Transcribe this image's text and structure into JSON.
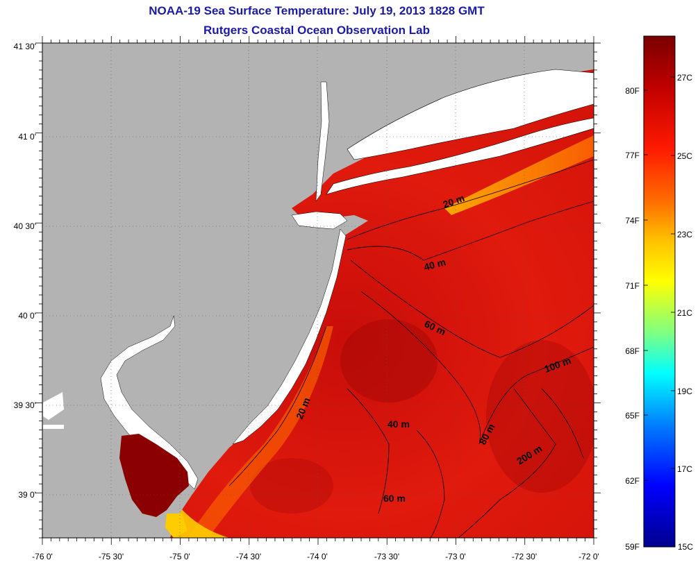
{
  "title": "NOAA-19 Sea Surface Temperature:  July 19, 2013 1828 GMT",
  "subtitle": "Rutgers Coastal Ocean Observation Lab",
  "map": {
    "lon_range": [
      -76,
      -72
    ],
    "lat_range": [
      38.75,
      41.5
    ],
    "lon_ticks": [
      "-76 0'",
      "-75 30'",
      "-75 0'",
      "-74 30'",
      "-74 0'",
      "-73 30'",
      "-73 0'",
      "-72 30'",
      "-72 0'"
    ],
    "lat_ticks": [
      "41 30'",
      "41 0'",
      "40 30'",
      "40 0'",
      "39 30'",
      "39 0'"
    ],
    "land_color": "#b3b3b3",
    "ocean_color": "#e01a0d",
    "isobath_labels": [
      "20 m",
      "40 m",
      "60 m",
      "100 m",
      "20 m",
      "40 m",
      "80 m",
      "200 m",
      "60 m"
    ]
  },
  "colorbar": {
    "fahrenheit_labels": [
      "80F",
      "77F",
      "74F",
      "71F",
      "68F",
      "65F",
      "62F",
      "59F"
    ],
    "celsius_labels": [
      "27C",
      "25C",
      "23C",
      "21C",
      "19C",
      "17C",
      "15C"
    ],
    "gradient_colors": [
      "#7a0000",
      "#c00000",
      "#ff1a00",
      "#ff6a00",
      "#ffc000",
      "#ffff00",
      "#80ff80",
      "#00ffff",
      "#0080ff",
      "#0000ff",
      "#00008f"
    ]
  }
}
